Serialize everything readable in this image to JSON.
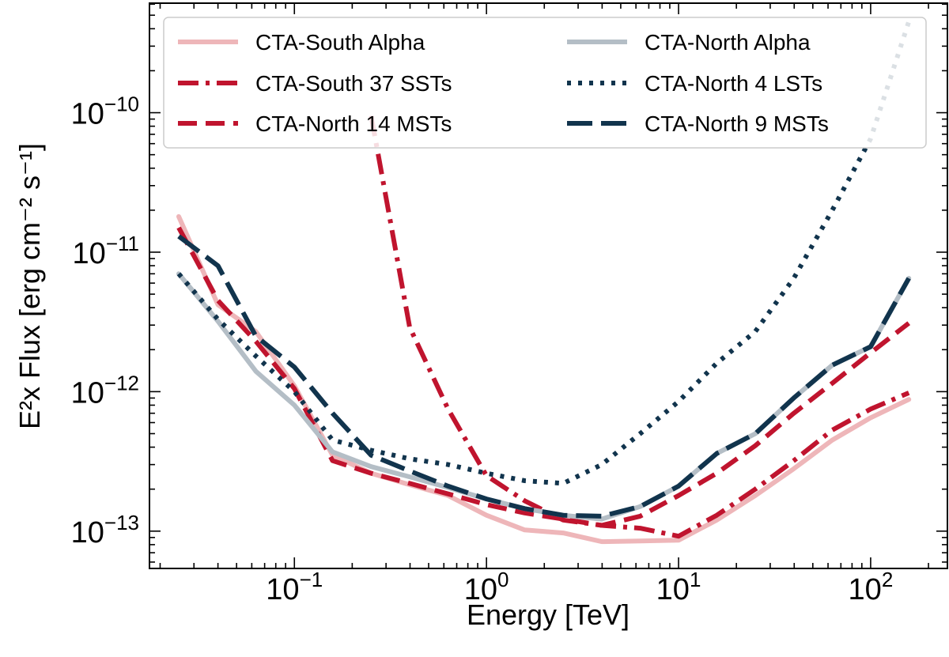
{
  "chart_data": {
    "type": "line",
    "xscale": "log",
    "yscale": "log",
    "xlabel": "Energy [TeV]",
    "ylabel": "E²x Flux [erg cm⁻² s⁻¹]",
    "xlim": [
      0.0176,
      251
    ],
    "ylim": [
      5.4e-14,
      6.1e-10
    ],
    "x_ticks": [
      {
        "value": 0.1,
        "base": "10",
        "exp": "−1"
      },
      {
        "value": 1,
        "base": "10",
        "exp": "0"
      },
      {
        "value": 10,
        "base": "10",
        "exp": "1"
      },
      {
        "value": 100,
        "base": "10",
        "exp": "2"
      }
    ],
    "y_ticks": [
      {
        "value": 1e-13,
        "base": "10",
        "exp": "−13"
      },
      {
        "value": 1e-12,
        "base": "10",
        "exp": "−12"
      },
      {
        "value": 1e-11,
        "base": "10",
        "exp": "−11"
      },
      {
        "value": 1e-10,
        "base": "10",
        "exp": "−10"
      }
    ],
    "legend_position": "top",
    "series": [
      {
        "name": "CTA-South Alpha",
        "color": "#eeb6b9",
        "style": "solid",
        "points": [
          [
            0.025,
            1.8e-11
          ],
          [
            0.04,
            4.2e-12
          ],
          [
            0.063,
            2.7e-12
          ],
          [
            0.1,
            1.1e-12
          ],
          [
            0.158,
            3.5e-13
          ],
          [
            0.251,
            2.6e-13
          ],
          [
            0.398,
            2.15e-13
          ],
          [
            0.631,
            1.8e-13
          ],
          [
            1,
            1.3e-13
          ],
          [
            1.58,
            1.02e-13
          ],
          [
            2.51,
            9.7e-14
          ],
          [
            3.98,
            8.4e-14
          ],
          [
            6.31,
            8.5e-14
          ],
          [
            10,
            8.6e-14
          ],
          [
            15.8,
            1.2e-13
          ],
          [
            25.1,
            1.8e-13
          ],
          [
            39.8,
            2.8e-13
          ],
          [
            63.1,
            4.5e-13
          ],
          [
            100,
            6.5e-13
          ],
          [
            158,
            8.8e-13
          ]
        ]
      },
      {
        "name": "CTA-South 37 SSTs",
        "color": "#c0142e",
        "style": "dashdot",
        "points": [
          [
            0.251,
            9.5e-11
          ],
          [
            0.398,
            2.9e-12
          ],
          [
            0.631,
            7.5e-13
          ],
          [
            1,
            2.5e-13
          ],
          [
            1.58,
            1.65e-13
          ],
          [
            2.51,
            1.2e-13
          ],
          [
            3.98,
            1.1e-13
          ],
          [
            6.31,
            1.05e-13
          ],
          [
            10,
            9.2e-14
          ],
          [
            15.8,
            1.3e-13
          ],
          [
            25.1,
            2e-13
          ],
          [
            39.8,
            3.2e-13
          ],
          [
            63.1,
            5.3e-13
          ],
          [
            100,
            7.5e-13
          ],
          [
            158,
            9.8e-13
          ]
        ]
      },
      {
        "name": "CTA-North 14 MSTs",
        "color": "#c0142e",
        "style": "dashed",
        "points": [
          [
            0.025,
            1.5e-11
          ],
          [
            0.04,
            4.5e-12
          ],
          [
            0.063,
            2.3e-12
          ],
          [
            0.1,
            1.05e-12
          ],
          [
            0.158,
            3.2e-13
          ],
          [
            0.251,
            2.6e-13
          ],
          [
            0.398,
            2.2e-13
          ],
          [
            0.631,
            1.85e-13
          ],
          [
            1,
            1.55e-13
          ],
          [
            1.58,
            1.35e-13
          ],
          [
            2.51,
            1.22e-13
          ],
          [
            3.98,
            1.1e-13
          ],
          [
            6.31,
            1.28e-13
          ],
          [
            10,
            1.8e-13
          ],
          [
            15.8,
            2.6e-13
          ],
          [
            25.1,
            4.1e-13
          ],
          [
            39.8,
            7e-13
          ],
          [
            63.1,
            1.15e-12
          ],
          [
            100,
            1.9e-12
          ],
          [
            158,
            3.1e-12
          ]
        ]
      },
      {
        "name": "CTA-North Alpha",
        "color": "#b4bec6",
        "style": "solid",
        "points": [
          [
            0.025,
            7e-12
          ],
          [
            0.04,
            3.2e-12
          ],
          [
            0.063,
            1.4e-12
          ],
          [
            0.1,
            8e-13
          ],
          [
            0.158,
            3.7e-13
          ],
          [
            0.251,
            2.9e-13
          ],
          [
            0.398,
            2.45e-13
          ],
          [
            0.631,
            2.05e-13
          ],
          [
            1,
            1.7e-13
          ],
          [
            1.58,
            1.45e-13
          ],
          [
            2.51,
            1.3e-13
          ],
          [
            3.98,
            1.22e-13
          ],
          [
            6.31,
            1.5e-13
          ],
          [
            10,
            2.1e-13
          ],
          [
            15.8,
            3.6e-13
          ],
          [
            25.1,
            5e-13
          ],
          [
            39.8,
            9e-13
          ],
          [
            63.1,
            1.55e-12
          ],
          [
            100,
            2.1e-12
          ],
          [
            158,
            6.5e-12
          ]
        ]
      },
      {
        "name": "CTA-North 4 LSTs",
        "color": "#11344d",
        "style": "dotted",
        "points": [
          [
            0.025,
            7e-12
          ],
          [
            0.04,
            3.3e-12
          ],
          [
            0.063,
            1.8e-12
          ],
          [
            0.1,
            1e-12
          ],
          [
            0.158,
            4.5e-13
          ],
          [
            0.251,
            3.8e-13
          ],
          [
            0.398,
            3.3e-13
          ],
          [
            0.631,
            3e-13
          ],
          [
            1,
            2.6e-13
          ],
          [
            1.58,
            2.3e-13
          ],
          [
            2.51,
            2.2e-13
          ],
          [
            3.98,
            3e-13
          ],
          [
            6.31,
            5e-13
          ],
          [
            10,
            8.5e-13
          ],
          [
            15.8,
            1.6e-12
          ],
          [
            25.1,
            2.7e-12
          ],
          [
            39.8,
            6.5e-12
          ],
          [
            63.1,
            2e-11
          ],
          [
            100,
            6.5e-11
          ],
          [
            158,
            4.5e-10
          ]
        ]
      },
      {
        "name": "CTA-North 9 MSTs",
        "color": "#11344d",
        "style": "longdash",
        "points": [
          [
            0.025,
            1.3e-11
          ],
          [
            0.04,
            8e-12
          ],
          [
            0.063,
            2.5e-12
          ],
          [
            0.1,
            1.5e-12
          ],
          [
            0.158,
            7e-13
          ],
          [
            0.251,
            3.5e-13
          ],
          [
            0.398,
            2.7e-13
          ],
          [
            0.631,
            2.1e-13
          ],
          [
            1,
            1.7e-13
          ],
          [
            1.58,
            1.45e-13
          ],
          [
            2.51,
            1.3e-13
          ],
          [
            3.98,
            1.28e-13
          ],
          [
            6.31,
            1.5e-13
          ],
          [
            10,
            2.1e-13
          ],
          [
            15.8,
            3.6e-13
          ],
          [
            25.1,
            5e-13
          ],
          [
            39.8,
            9e-13
          ],
          [
            63.1,
            1.55e-12
          ],
          [
            100,
            2.1e-12
          ],
          [
            158,
            6.5e-12
          ]
        ]
      }
    ]
  }
}
